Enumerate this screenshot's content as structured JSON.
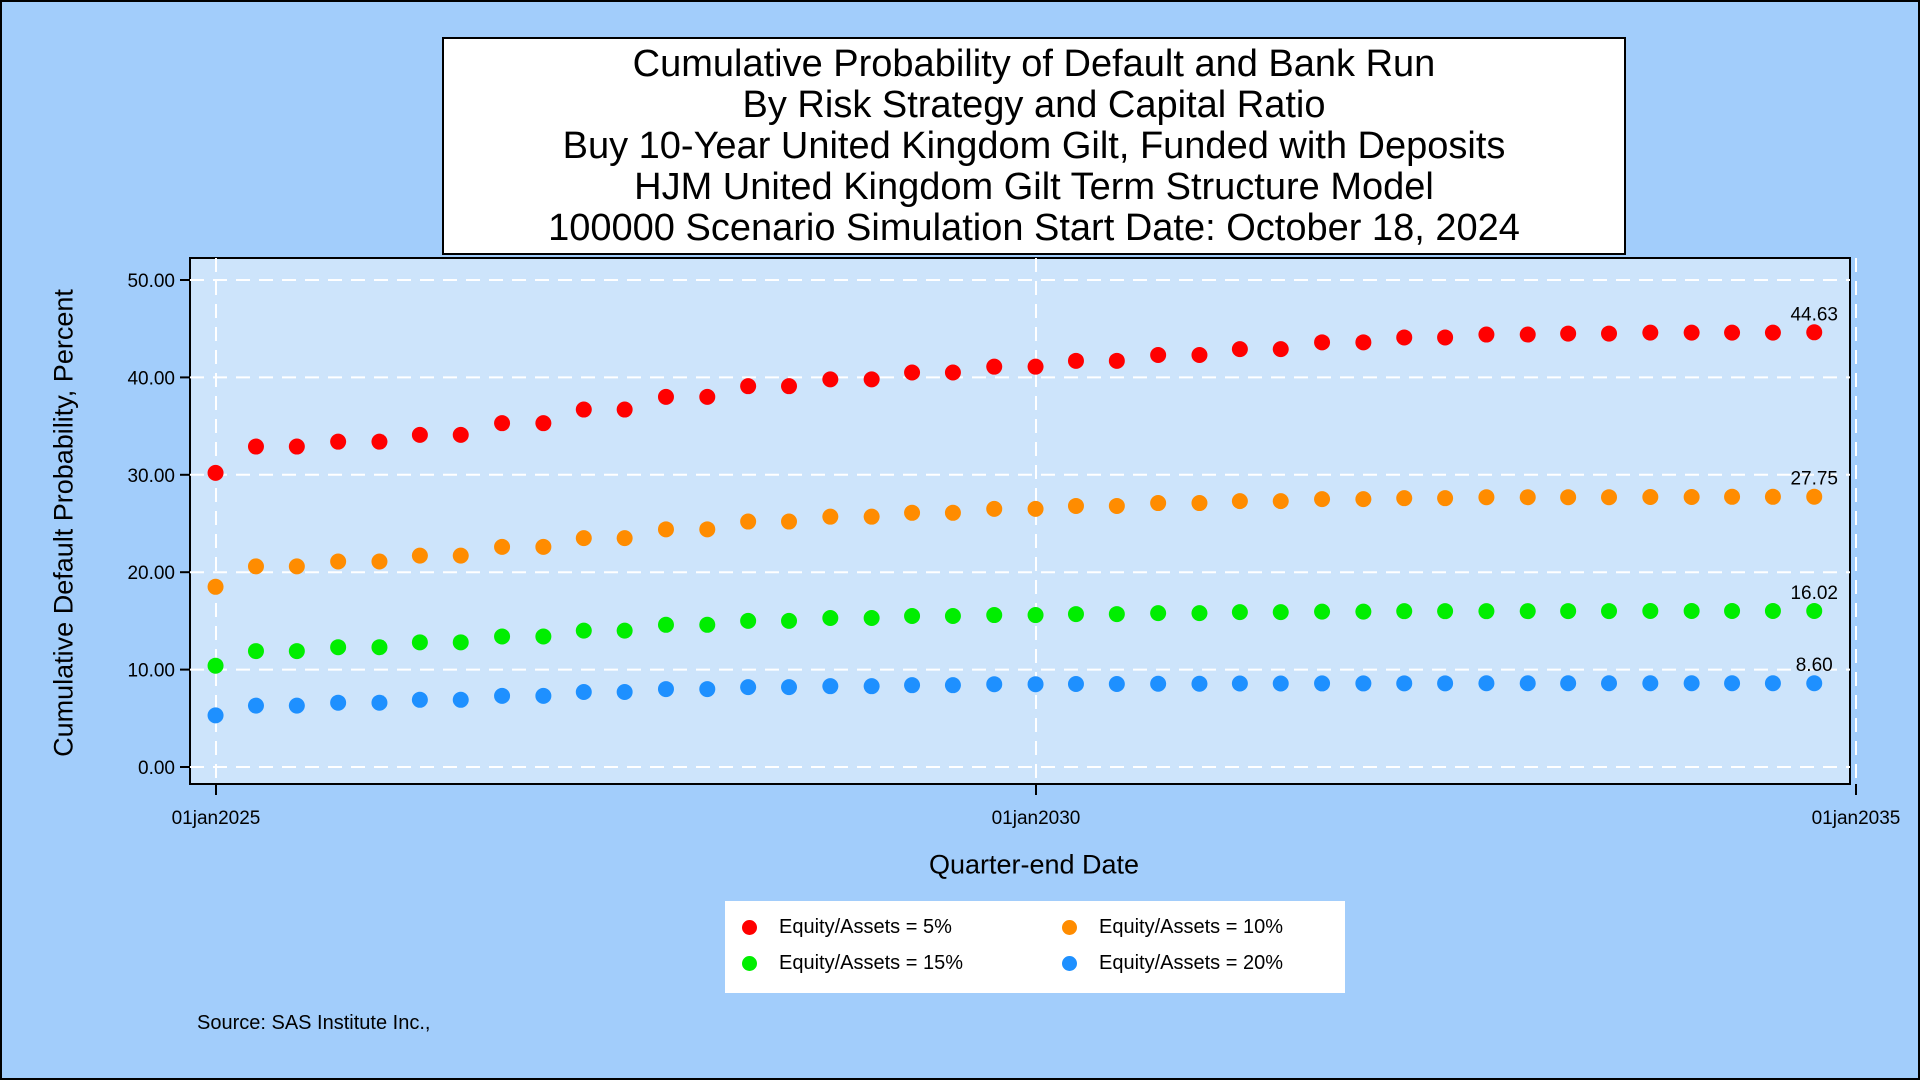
{
  "title_lines": [
    "Cumulative Probability of Default and Bank Run",
    "By Risk Strategy and Capital Ratio",
    "Buy 10-Year United Kingdom Gilt, Funded with Deposits",
    "HJM United Kingdom Gilt Term Structure Model",
    "100000 Scenario Simulation Start Date: October 18, 2024"
  ],
  "source": "Source: SAS Institute Inc.,",
  "colors": {
    "page_background": "#a2cdfb",
    "plot_background": "#cde4fb",
    "grid": "#ffffff"
  },
  "chart_data": {
    "type": "scatter",
    "title": "Cumulative Probability of Default and Bank Run",
    "xlabel": "Quarter-end Date",
    "ylabel": "Cumulative Default Probability, Percent",
    "ylim": [
      0,
      50
    ],
    "xlim": [
      "2025-01-01",
      "2035-01-01"
    ],
    "yticks": [
      "0.00",
      "10.00",
      "20.00",
      "30.00",
      "40.00",
      "50.00"
    ],
    "xticks": [
      "01jan2025",
      "01jan2030",
      "01jan2035"
    ],
    "grid": true,
    "legend_position": "bottom",
    "x": [
      "2024-12-31",
      "2025-03-31",
      "2025-06-30",
      "2025-09-30",
      "2025-12-31",
      "2026-03-31",
      "2026-06-30",
      "2026-09-30",
      "2026-12-31",
      "2027-03-31",
      "2027-06-30",
      "2027-09-30",
      "2027-12-31",
      "2028-03-31",
      "2028-06-30",
      "2028-09-30",
      "2028-12-31",
      "2029-03-31",
      "2029-06-30",
      "2029-09-30",
      "2029-12-31",
      "2030-03-31",
      "2030-06-30",
      "2030-09-30",
      "2030-12-31",
      "2031-03-31",
      "2031-06-30",
      "2031-09-30",
      "2031-12-31",
      "2032-03-31",
      "2032-06-30",
      "2032-09-30",
      "2032-12-31",
      "2033-03-31",
      "2033-06-30",
      "2033-09-30",
      "2033-12-31",
      "2034-03-31",
      "2034-06-30",
      "2034-09-30"
    ],
    "series": [
      {
        "name": "Equity/Assets = 5%",
        "color": "#ff0000",
        "values": [
          30.2,
          32.9,
          32.9,
          33.4,
          33.4,
          34.1,
          34.1,
          35.3,
          35.3,
          36.7,
          36.7,
          38.0,
          38.0,
          39.1,
          39.1,
          39.8,
          39.8,
          40.5,
          40.5,
          41.1,
          41.1,
          41.7,
          41.7,
          42.3,
          42.3,
          42.9,
          42.9,
          43.6,
          43.6,
          44.1,
          44.1,
          44.4,
          44.4,
          44.5,
          44.5,
          44.6,
          44.6,
          44.6,
          44.6,
          44.63
        ],
        "end_label": "44.63"
      },
      {
        "name": "Equity/Assets = 10%",
        "color": "#ff8c00",
        "values": [
          18.5,
          20.6,
          20.6,
          21.1,
          21.1,
          21.7,
          21.7,
          22.6,
          22.6,
          23.5,
          23.5,
          24.4,
          24.4,
          25.2,
          25.2,
          25.7,
          25.7,
          26.1,
          26.1,
          26.5,
          26.5,
          26.8,
          26.8,
          27.1,
          27.1,
          27.3,
          27.3,
          27.5,
          27.5,
          27.6,
          27.6,
          27.7,
          27.7,
          27.7,
          27.7,
          27.72,
          27.72,
          27.74,
          27.74,
          27.75
        ],
        "end_label": "27.75"
      },
      {
        "name": "Equity/Assets = 15%",
        "color": "#00ee00",
        "values": [
          10.4,
          11.9,
          11.9,
          12.3,
          12.3,
          12.8,
          12.8,
          13.4,
          13.4,
          14.0,
          14.0,
          14.6,
          14.6,
          15.0,
          15.0,
          15.3,
          15.3,
          15.5,
          15.5,
          15.6,
          15.6,
          15.7,
          15.7,
          15.8,
          15.8,
          15.9,
          15.9,
          15.95,
          15.95,
          16.0,
          16.0,
          16.0,
          16.0,
          16.01,
          16.01,
          16.02,
          16.02,
          16.02,
          16.02,
          16.02
        ],
        "end_label": "16.02"
      },
      {
        "name": "Equity/Assets = 20%",
        "color": "#1e90ff",
        "values": [
          5.3,
          6.3,
          6.3,
          6.6,
          6.6,
          6.9,
          6.9,
          7.3,
          7.3,
          7.7,
          7.7,
          8.0,
          8.0,
          8.2,
          8.2,
          8.3,
          8.3,
          8.4,
          8.4,
          8.5,
          8.5,
          8.52,
          8.52,
          8.55,
          8.55,
          8.57,
          8.57,
          8.58,
          8.58,
          8.59,
          8.59,
          8.6,
          8.6,
          8.6,
          8.6,
          8.6,
          8.6,
          8.6,
          8.6,
          8.6
        ],
        "end_label": "8.60"
      }
    ]
  }
}
